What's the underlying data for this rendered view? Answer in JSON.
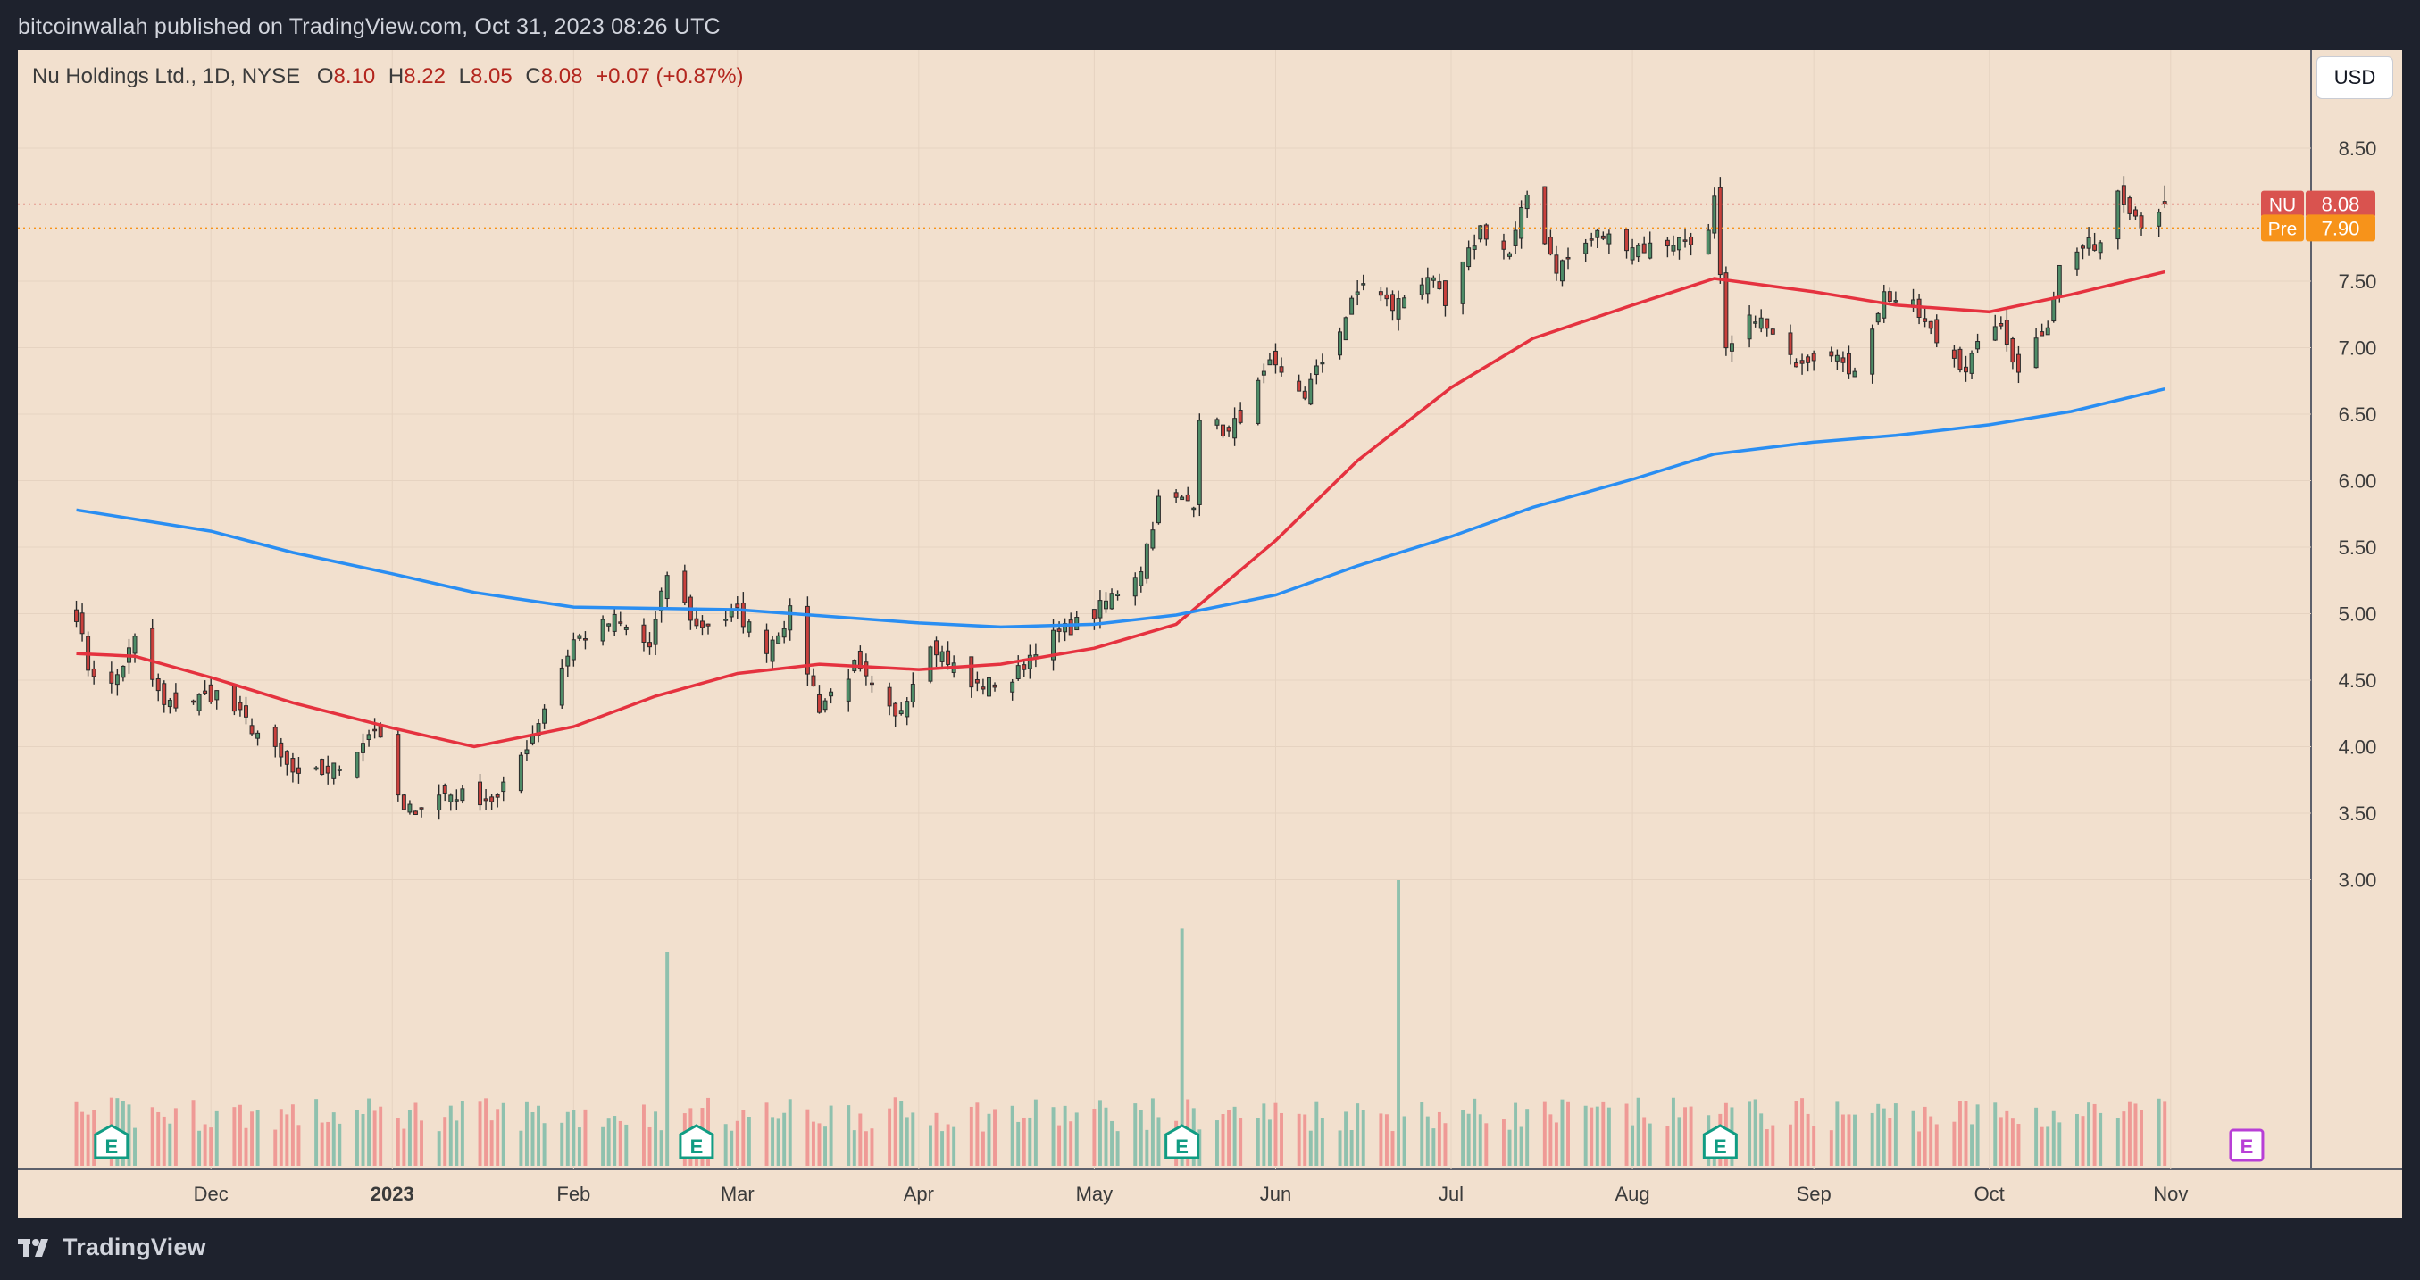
{
  "header": {
    "published_text": "bitcoinwallah published on TradingView.com, Oct 31, 2023 08:26 UTC"
  },
  "legend": {
    "symbol": "Nu Holdings Ltd., 1D, NYSE",
    "o_label": "O",
    "o_value": "8.10",
    "h_label": "H",
    "h_value": "8.22",
    "l_label": "L",
    "l_value": "8.05",
    "c_label": "C",
    "c_value": "8.08",
    "change": "+0.07 (+0.87%)"
  },
  "currency_button": "USD",
  "price_tags": [
    {
      "label": "NU",
      "value": "8.08",
      "color": "#d9534f"
    },
    {
      "label": "Pre",
      "value": "7.90",
      "color": "#f7931a"
    }
  ],
  "earnings_marker": "E",
  "footer": {
    "brand": "TradingView"
  },
  "colors": {
    "background": "#f2e0ce",
    "up": "#4e8c67",
    "down": "#c9403c",
    "ma50": "#e5323f",
    "ma200": "#2a8ef2",
    "volume_up": "#8fc1ae",
    "volume_down": "#ef9a96",
    "earnings": "#119c83",
    "upcoming_earnings": "#b83fd6"
  },
  "chart_data": {
    "type": "candlestick",
    "title": "Nu Holdings Ltd., 1D, NYSE",
    "y_axis": {
      "ticks": [
        "3.00",
        "3.50",
        "4.00",
        "4.50",
        "5.00",
        "5.50",
        "6.00",
        "6.50",
        "7.00",
        "7.50",
        "8.50"
      ],
      "range": [
        2.6,
        8.8
      ],
      "scale": "linear"
    },
    "x_axis": {
      "ticks": [
        "Dec",
        "2023",
        "Feb",
        "Mar",
        "Apr",
        "May",
        "Jun",
        "Jul",
        "Aug",
        "Sep",
        "Oct",
        "Nov"
      ],
      "range": [
        "2022-11-08",
        "2023-10-31"
      ]
    },
    "anchors": [
      [
        "2022-11-08",
        5.0
      ],
      [
        "2022-11-10",
        4.6
      ],
      [
        "2022-11-14",
        4.45
      ],
      [
        "2022-11-18",
        4.8
      ],
      [
        "2022-11-23",
        4.3
      ],
      [
        "2022-12-02",
        4.4
      ],
      [
        "2022-12-09",
        4.1
      ],
      [
        "2022-12-16",
        3.75
      ],
      [
        "2022-12-23",
        3.85
      ],
      [
        "2022-12-29",
        4.15
      ],
      [
        "2023-01-03",
        3.5
      ],
      [
        "2023-01-10",
        3.65
      ],
      [
        "2023-01-19",
        3.6
      ],
      [
        "2023-01-25",
        4.1
      ],
      [
        "2023-02-01",
        4.8
      ],
      [
        "2023-02-08",
        4.95
      ],
      [
        "2023-02-14",
        4.75
      ],
      [
        "2023-02-17",
        5.3
      ],
      [
        "2023-02-22",
        4.9
      ],
      [
        "2023-03-01",
        5.0
      ],
      [
        "2023-03-06",
        4.75
      ],
      [
        "2023-03-10",
        5.0
      ],
      [
        "2023-03-15",
        4.3
      ],
      [
        "2023-03-21",
        4.6
      ],
      [
        "2023-03-28",
        4.2
      ],
      [
        "2023-04-03",
        4.8
      ],
      [
        "2023-04-10",
        4.45
      ],
      [
        "2023-04-17",
        4.5
      ],
      [
        "2023-04-21",
        4.75
      ],
      [
        "2023-05-01",
        5.0
      ],
      [
        "2023-05-09",
        5.35
      ],
      [
        "2023-05-12",
        5.85
      ],
      [
        "2023-05-18",
        5.85
      ],
      [
        "2023-05-19",
        6.5
      ],
      [
        "2023-05-24",
        6.35
      ],
      [
        "2023-05-31",
        6.85
      ],
      [
        "2023-06-06",
        6.65
      ],
      [
        "2023-06-12",
        7.15
      ],
      [
        "2023-06-16",
        7.5
      ],
      [
        "2023-06-21",
        7.3
      ],
      [
        "2023-06-27",
        7.55
      ],
      [
        "2023-06-30",
        7.3
      ],
      [
        "2023-07-06",
        7.9
      ],
      [
        "2023-07-11",
        7.7
      ],
      [
        "2023-07-14",
        8.15
      ],
      [
        "2023-07-19",
        7.6
      ],
      [
        "2023-07-26",
        7.85
      ],
      [
        "2023-08-03",
        7.75
      ],
      [
        "2023-08-08",
        7.8
      ],
      [
        "2023-08-14",
        7.85
      ],
      [
        "2023-08-15",
        8.1
      ],
      [
        "2023-08-16",
        7.5
      ],
      [
        "2023-08-17",
        6.95
      ],
      [
        "2023-08-22",
        7.25
      ],
      [
        "2023-08-28",
        6.9
      ],
      [
        "2023-09-05",
        7.0
      ],
      [
        "2023-09-07",
        6.75
      ],
      [
        "2023-09-13",
        7.4
      ],
      [
        "2023-09-18",
        7.3
      ],
      [
        "2023-09-22",
        7.05
      ],
      [
        "2023-09-27",
        6.85
      ],
      [
        "2023-10-02",
        7.2
      ],
      [
        "2023-10-06",
        6.85
      ],
      [
        "2023-10-11",
        7.2
      ],
      [
        "2023-10-13",
        7.6
      ],
      [
        "2023-10-17",
        7.75
      ],
      [
        "2023-10-20",
        7.8
      ],
      [
        "2023-10-23",
        8.2
      ],
      [
        "2023-10-26",
        8.0
      ],
      [
        "2023-10-27",
        7.95
      ],
      [
        "2023-10-30",
        8.05
      ],
      [
        "2023-10-31",
        8.08
      ]
    ],
    "ohlc_last": {
      "date": "2023-10-31",
      "open": 8.1,
      "high": 8.22,
      "low": 8.05,
      "close": 8.08
    },
    "series": [
      {
        "name": "NU",
        "type": "candlestick",
        "last": 8.08
      },
      {
        "name": "",
        "type": "line",
        "description": "moving average (red)",
        "points": [
          [
            "2022-11-08",
            4.7
          ],
          [
            "2022-11-18",
            4.68
          ],
          [
            "2022-12-01",
            4.52
          ],
          [
            "2022-12-15",
            4.33
          ],
          [
            "2023-01-01",
            4.14
          ],
          [
            "2023-01-15",
            4.0
          ],
          [
            "2023-02-01",
            4.15
          ],
          [
            "2023-02-15",
            4.38
          ],
          [
            "2023-03-01",
            4.55
          ],
          [
            "2023-03-15",
            4.62
          ],
          [
            "2023-04-01",
            4.58
          ],
          [
            "2023-04-15",
            4.62
          ],
          [
            "2023-05-01",
            4.74
          ],
          [
            "2023-05-15",
            4.92
          ],
          [
            "2023-06-01",
            5.55
          ],
          [
            "2023-06-15",
            6.15
          ],
          [
            "2023-07-01",
            6.7
          ],
          [
            "2023-07-15",
            7.07
          ],
          [
            "2023-08-01",
            7.32
          ],
          [
            "2023-08-15",
            7.52
          ],
          [
            "2023-09-01",
            7.42
          ],
          [
            "2023-09-15",
            7.32
          ],
          [
            "2023-10-01",
            7.27
          ],
          [
            "2023-10-15",
            7.4
          ],
          [
            "2023-10-31",
            7.57
          ]
        ]
      },
      {
        "name": "",
        "type": "line",
        "description": "moving average (blue)",
        "points": [
          [
            "2022-11-08",
            5.78
          ],
          [
            "2022-12-01",
            5.62
          ],
          [
            "2022-12-15",
            5.46
          ],
          [
            "2023-01-01",
            5.3
          ],
          [
            "2023-01-15",
            5.16
          ],
          [
            "2023-02-01",
            5.05
          ],
          [
            "2023-03-01",
            5.03
          ],
          [
            "2023-04-01",
            4.93
          ],
          [
            "2023-04-15",
            4.9
          ],
          [
            "2023-05-01",
            4.92
          ],
          [
            "2023-05-15",
            4.99
          ],
          [
            "2023-06-01",
            5.14
          ],
          [
            "2023-06-15",
            5.36
          ],
          [
            "2023-07-01",
            5.58
          ],
          [
            "2023-07-15",
            5.8
          ],
          [
            "2023-08-01",
            6.01
          ],
          [
            "2023-08-15",
            6.2
          ],
          [
            "2023-09-01",
            6.29
          ],
          [
            "2023-09-15",
            6.34
          ],
          [
            "2023-10-01",
            6.42
          ],
          [
            "2023-10-15",
            6.52
          ],
          [
            "2023-10-31",
            6.69
          ]
        ]
      }
    ],
    "volume": {
      "spikes": [
        [
          "2023-02-17",
          0.75
        ],
        [
          "2023-05-16",
          0.83
        ],
        [
          "2023-06-22",
          1.0
        ]
      ]
    },
    "earnings_markers": [
      "2022-11-14",
      "2023-02-22",
      "2023-05-16",
      "2023-08-16"
    ],
    "upcoming_earnings_markers": [
      "2023-11-14"
    ],
    "horizontal_lines": [
      {
        "name": "NU",
        "value": 8.08
      },
      {
        "name": "Pre",
        "value": 7.9
      }
    ],
    "grid": true,
    "legend_placement": "top-left"
  }
}
